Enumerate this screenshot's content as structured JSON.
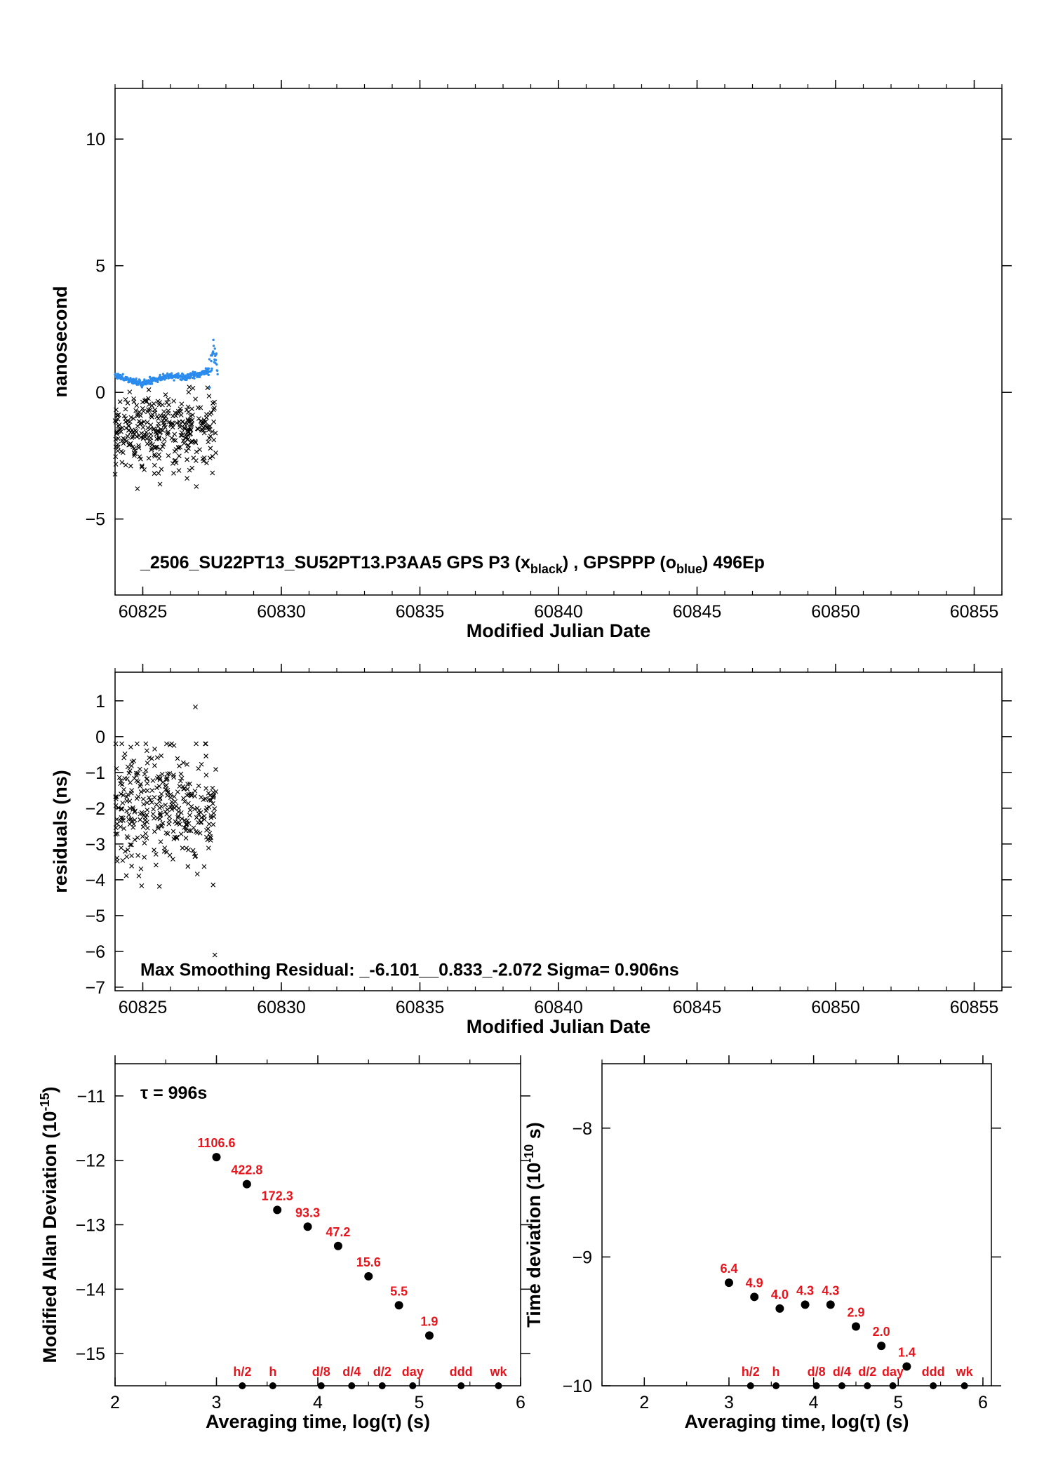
{
  "chart_data": [
    {
      "id": "top",
      "type": "scatter",
      "xlabel": "Modified Julian Date",
      "ylabel": "nanosecond",
      "xlim": [
        60824,
        60856
      ],
      "ylim": [
        -8,
        12
      ],
      "xticks": [
        "60825",
        "60830",
        "60835",
        "60840",
        "60845",
        "60850",
        "60855"
      ],
      "yticks": [
        "−5",
        "0",
        "5",
        "10"
      ],
      "annotation": {
        "file": "_2506_SU22PT13_SU52PT13.P3AA5",
        "l1": "GPS P3 (x",
        "l1sub": "black",
        "l2": ") ,  GPSPPP (o",
        "l2sub": "blue",
        "l3": ")  496Ep"
      },
      "series": [
        {
          "marker": "x",
          "color": "#000000",
          "x_range": [
            60824,
            60827.65
          ],
          "y_mean": -1.6,
          "y_spread": 2.2,
          "n": 340
        },
        {
          "marker": "dot",
          "color": "#2b8cee",
          "x_range": [
            60824,
            60827.7
          ],
          "y_trend": [
            [
              60824.0,
              0.7
            ],
            [
              60824.6,
              0.45
            ],
            [
              60825.0,
              0.35
            ],
            [
              60825.5,
              0.55
            ],
            [
              60826.0,
              0.65
            ],
            [
              60826.5,
              0.6
            ],
            [
              60827.0,
              0.7
            ],
            [
              60827.4,
              0.9
            ],
            [
              60827.55,
              1.6
            ],
            [
              60827.7,
              1.0
            ]
          ],
          "n": 340
        }
      ]
    },
    {
      "id": "middle",
      "type": "scatter",
      "xlabel": "Modified Julian Date",
      "ylabel": "residuals (ns)",
      "xlim": [
        60824,
        60856
      ],
      "ylim": [
        -7.1,
        1.8
      ],
      "xticks": [
        "60825",
        "60830",
        "60835",
        "60840",
        "60845",
        "60850",
        "60855"
      ],
      "yticks": [
        "1",
        "0",
        "−1",
        "−2",
        "−3",
        "−4",
        "−5",
        "−6",
        "−7"
      ],
      "annotation": "Max Smoothing Residual: _-6.101__0.833_-2.072  Sigma= 0.906ns",
      "series": [
        {
          "marker": "x",
          "color": "#000000",
          "x_range": [
            60824,
            60827.65
          ],
          "y_mean": -2.0,
          "y_spread": 2.4,
          "n": 340,
          "outliers": [
            [
              60826.9,
              0.83
            ],
            [
              60827.6,
              -6.1
            ]
          ]
        }
      ]
    },
    {
      "id": "mdev",
      "type": "scatter",
      "xlabel": "Averaging time, log(τ) (s)",
      "ylabel": "Modified Allan Deviation (10",
      "ylabel_sup": "-15",
      "ylabel_end": ")",
      "xlim": [
        2,
        6
      ],
      "ylim": [
        -15.5,
        -10.5
      ],
      "xticks": [
        "2",
        "3",
        "4",
        "5",
        "6"
      ],
      "yticks": [
        "−11",
        "−12",
        "−13",
        "−14",
        "−15"
      ],
      "tau_note": "τ = 996s",
      "points": [
        {
          "x": 3.0,
          "y": -11.95,
          "label": "1106.6"
        },
        {
          "x": 3.3,
          "y": -12.37,
          "label": "422.8"
        },
        {
          "x": 3.6,
          "y": -12.77,
          "label": "172.3"
        },
        {
          "x": 3.9,
          "y": -13.03,
          "label": "93.3"
        },
        {
          "x": 4.2,
          "y": -13.33,
          "label": "47.2"
        },
        {
          "x": 4.5,
          "y": -13.8,
          "label": "15.6"
        },
        {
          "x": 4.8,
          "y": -14.25,
          "label": "5.5"
        },
        {
          "x": 5.1,
          "y": -14.72,
          "label": "1.9"
        }
      ],
      "markers": [
        {
          "x": 3.255,
          "label": "h/2"
        },
        {
          "x": 3.556,
          "label": "h"
        },
        {
          "x": 4.033,
          "label": "d/8"
        },
        {
          "x": 4.334,
          "label": "d/4"
        },
        {
          "x": 4.635,
          "label": "d/2"
        },
        {
          "x": 4.936,
          "label": "day"
        },
        {
          "x": 5.413,
          "label": "ddd"
        },
        {
          "x": 5.782,
          "label": "wk"
        }
      ]
    },
    {
      "id": "tdev",
      "type": "scatter",
      "xlabel": "Averaging time, log(τ) (s)",
      "ylabel": "Time deviation (10",
      "ylabel_sup": "-10",
      "ylabel_end": " s)",
      "xlim": [
        1.5,
        6.1
      ],
      "ylim": [
        -10.0,
        -7.5
      ],
      "xticks": [
        "2",
        "3",
        "4",
        "5",
        "6"
      ],
      "yticks": [
        "−8",
        "−9",
        "−10"
      ],
      "points": [
        {
          "x": 3.0,
          "y": -9.2,
          "label": "6.4"
        },
        {
          "x": 3.3,
          "y": -9.31,
          "label": "4.9"
        },
        {
          "x": 3.6,
          "y": -9.4,
          "label": "4.0"
        },
        {
          "x": 3.9,
          "y": -9.37,
          "label": "4.3"
        },
        {
          "x": 4.2,
          "y": -9.37,
          "label": "4.3"
        },
        {
          "x": 4.5,
          "y": -9.54,
          "label": "2.9"
        },
        {
          "x": 4.8,
          "y": -9.69,
          "label": "2.0"
        },
        {
          "x": 5.1,
          "y": -9.85,
          "label": "1.4"
        }
      ],
      "markers": [
        {
          "x": 3.255,
          "label": "h/2"
        },
        {
          "x": 3.556,
          "label": "h"
        },
        {
          "x": 4.033,
          "label": "d/8"
        },
        {
          "x": 4.334,
          "label": "d/4"
        },
        {
          "x": 4.635,
          "label": "d/2"
        },
        {
          "x": 4.936,
          "label": "day"
        },
        {
          "x": 5.413,
          "label": "ddd"
        },
        {
          "x": 5.782,
          "label": "wk"
        }
      ]
    }
  ]
}
